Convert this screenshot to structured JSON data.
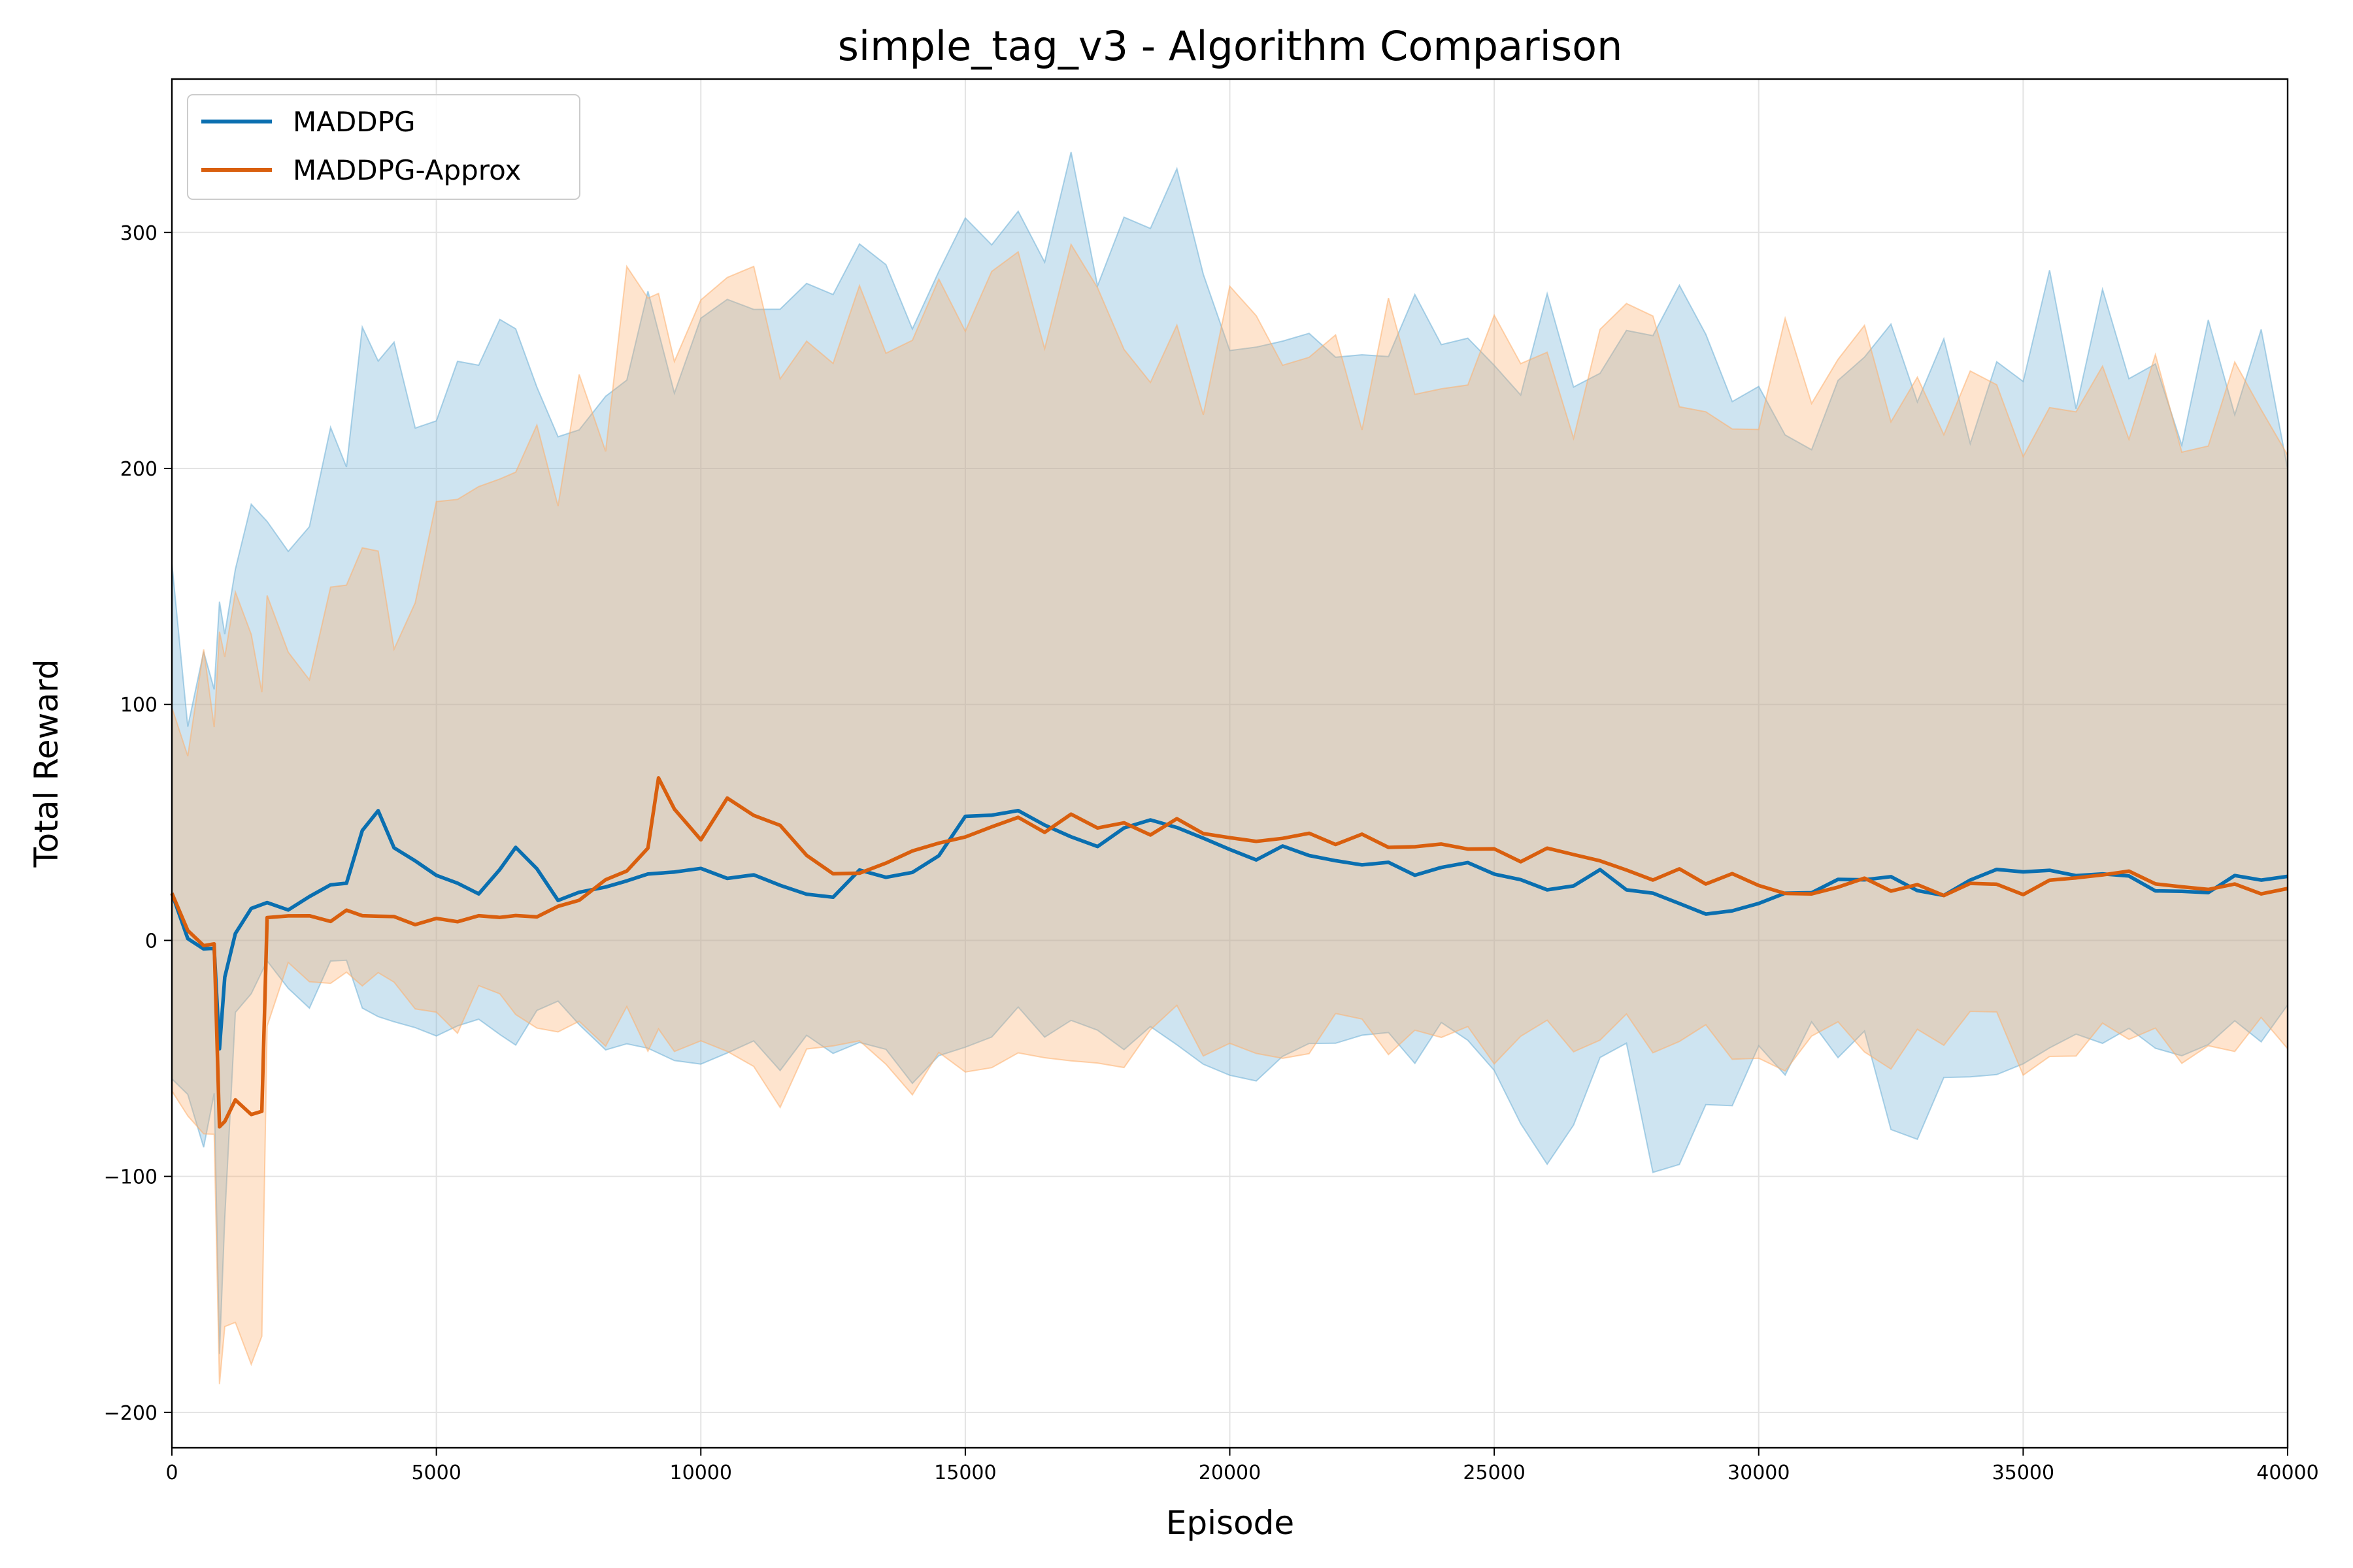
{
  "chart_data": {
    "type": "line",
    "title": "simple_tag_v3 - Algorithm Comparison",
    "xlabel": "Episode",
    "ylabel": "Total Reward",
    "xlim": [
      0,
      40000
    ],
    "ylim": [
      -215,
      365
    ],
    "xticks": [
      0,
      5000,
      10000,
      15000,
      20000,
      25000,
      30000,
      35000,
      40000
    ],
    "yticks": [
      -200,
      -100,
      0,
      100,
      200,
      300
    ],
    "ytick_labels": [
      "−200",
      "−100",
      "0",
      "100",
      "200",
      "300"
    ],
    "grid": true,
    "legend": "top-left",
    "series": [
      {
        "name": "MADDPG",
        "color": "#0a6fb0",
        "band_color": "#6baed6",
        "x": [
          0,
          300,
          600,
          800,
          900,
          1000,
          1200,
          1500,
          1800,
          2200,
          2600,
          3000,
          3300,
          3600,
          3900,
          4200,
          4600,
          5000,
          5400,
          5800,
          6200,
          6500,
          6900,
          7300,
          7700,
          8200,
          8600,
          9000,
          9500,
          10000,
          10500,
          11000,
          11500,
          12000,
          12500,
          13000,
          13500,
          14000,
          14500,
          15000,
          15500,
          16000,
          16500,
          17000,
          17500,
          18000,
          18500,
          19000,
          19500,
          20000,
          20500,
          21000,
          21500,
          22000,
          22500,
          23000,
          23500,
          24000,
          24500,
          25000,
          25500,
          26000,
          26500,
          27000,
          27500,
          28000,
          28500,
          29000,
          29500,
          30000,
          30500,
          31000,
          31500,
          32000,
          32500,
          33000,
          33500,
          34000,
          34500,
          35000,
          35500,
          36000,
          36500,
          37000,
          37500,
          38000,
          38500,
          39000,
          39500,
          40000
        ],
        "mean": [
          20,
          0,
          -3,
          -5,
          -45,
          -15,
          2,
          12,
          15,
          15,
          18,
          22,
          25,
          45,
          57,
          38,
          33,
          30,
          22,
          20,
          28,
          38,
          30,
          18,
          20,
          22,
          25,
          28,
          30,
          32,
          25,
          28,
          25,
          22,
          20,
          28,
          25,
          30,
          38,
          55,
          52,
          55,
          50,
          45,
          42,
          48,
          52,
          50,
          45,
          38,
          35,
          38,
          35,
          32,
          30,
          33,
          30,
          32,
          35,
          30,
          28,
          22,
          25,
          28,
          22,
          20,
          15,
          12,
          15,
          18,
          20,
          22,
          25,
          28,
          25,
          22,
          20,
          25,
          28,
          30,
          28,
          25,
          27,
          25,
          22,
          20,
          22,
          25,
          25,
          26
        ],
        "upper": [
          130,
          100,
          105,
          120,
          110,
          120,
          130,
          150,
          140,
          150,
          160,
          190,
          220,
          230,
          240,
          240,
          230,
          220,
          235,
          250,
          260,
          255,
          200,
          180,
          200,
          220,
          240,
          245,
          240,
          230,
          250,
          240,
          245,
          250,
          255,
          260,
          250,
          265,
          270,
          300,
          290,
          300,
          295,
          300,
          290,
          280,
          290,
          300,
          270,
          250,
          250,
          255,
          240,
          245,
          250,
          230,
          235,
          250,
          240,
          245,
          230,
          240,
          235,
          240,
          225,
          230,
          240,
          245,
          240,
          235,
          220,
          225,
          230,
          235,
          225,
          230,
          240,
          230,
          225,
          240,
          255,
          240,
          245,
          235,
          230,
          225,
          245,
          240,
          230,
          210
        ],
        "lower": [
          -50,
          -70,
          -80,
          -70,
          -165,
          -130,
          -30,
          -20,
          -15,
          -20,
          -20,
          -15,
          -20,
          -25,
          -30,
          -30,
          -35,
          -40,
          -35,
          -40,
          -40,
          -35,
          -35,
          -30,
          -30,
          -35,
          -35,
          -40,
          -40,
          -40,
          -40,
          -45,
          -45,
          -50,
          -45,
          -50,
          -50,
          -55,
          -50,
          -45,
          -45,
          -40,
          -40,
          -45,
          -45,
          -45,
          -45,
          -40,
          -45,
          -45,
          -50,
          -45,
          -45,
          -40,
          -40,
          -40,
          -45,
          -45,
          -45,
          -60,
          -80,
          -95,
          -70,
          -60,
          -55,
          -90,
          -105,
          -80,
          -60,
          -55,
          -50,
          -45,
          -55,
          -50,
          -70,
          -90,
          -60,
          -50,
          -45,
          -45,
          -45,
          -40,
          -45,
          -45,
          -50,
          -45,
          -40,
          -45,
          -40,
          -30
        ]
      },
      {
        "name": "MADDPG-Approx",
        "color": "#d95f0e",
        "band_color": "#fdae6b",
        "x": [
          0,
          300,
          600,
          800,
          900,
          1000,
          1200,
          1500,
          1700,
          1800,
          2200,
          2600,
          3000,
          3300,
          3600,
          3900,
          4200,
          4600,
          5000,
          5400,
          5800,
          6200,
          6500,
          6900,
          7300,
          7700,
          8200,
          8600,
          9000,
          9200,
          9500,
          10000,
          10500,
          11000,
          11500,
          12000,
          12500,
          13000,
          13500,
          14000,
          14500,
          15000,
          15500,
          16000,
          16500,
          17000,
          17500,
          18000,
          18500,
          19000,
          19500,
          20000,
          20500,
          21000,
          21500,
          22000,
          22500,
          23000,
          23500,
          24000,
          24500,
          25000,
          25500,
          26000,
          26500,
          27000,
          27500,
          28000,
          28500,
          29000,
          29500,
          30000,
          30500,
          31000,
          31500,
          32000,
          32500,
          33000,
          33500,
          34000,
          34500,
          35000,
          35500,
          36000,
          36500,
          37000,
          37500,
          38000,
          38500,
          39000,
          39500,
          40000
        ],
        "mean": [
          20,
          2,
          0,
          0,
          -80,
          -75,
          -70,
          -72,
          -70,
          10,
          10,
          10,
          10,
          12,
          10,
          12,
          10,
          8,
          10,
          10,
          8,
          10,
          12,
          10,
          15,
          18,
          25,
          30,
          40,
          70,
          55,
          45,
          60,
          55,
          48,
          35,
          28,
          30,
          32,
          38,
          40,
          45,
          50,
          52,
          48,
          55,
          50,
          48,
          45,
          50,
          45,
          42,
          40,
          45,
          45,
          42,
          45,
          40,
          38,
          42,
          40,
          38,
          35,
          38,
          35,
          35,
          30,
          28,
          30,
          25,
          28,
          25,
          22,
          20,
          25,
          28,
          22,
          22,
          20,
          25,
          22,
          20,
          25,
          28,
          30,
          28,
          25,
          22,
          20,
          22,
          20,
          20
        ],
        "upper": [
          110,
          90,
          100,
          110,
          120,
          110,
          120,
          130,
          125,
          130,
          120,
          110,
          125,
          130,
          140,
          145,
          140,
          150,
          160,
          170,
          165,
          180,
          185,
          180,
          200,
          210,
          220,
          250,
          270,
          280,
          265,
          265,
          255,
          260,
          255,
          250,
          240,
          245,
          250,
          250,
          255,
          260,
          250,
          255,
          250,
          260,
          255,
          260,
          245,
          240,
          235,
          240,
          245,
          240,
          245,
          240,
          230,
          235,
          240,
          235,
          240,
          230,
          235,
          240,
          230,
          240,
          245,
          260,
          240,
          230,
          235,
          225,
          230,
          240,
          230,
          235,
          225,
          240,
          220,
          230,
          225,
          220,
          235,
          230,
          240,
          225,
          230,
          225,
          230,
          220,
          215,
          225
        ],
        "lower": [
          -60,
          -70,
          -80,
          -75,
          -180,
          -175,
          -170,
          -175,
          -170,
          -25,
          -20,
          -20,
          -15,
          -20,
          -20,
          -25,
          -25,
          -30,
          -30,
          -35,
          -30,
          -35,
          -35,
          -30,
          -35,
          -35,
          -40,
          -40,
          -45,
          -50,
          -45,
          -45,
          -50,
          -60,
          -75,
          -55,
          -45,
          -50,
          -50,
          -55,
          -50,
          -45,
          -50,
          -45,
          -40,
          -40,
          -45,
          -45,
          -40,
          -40,
          -45,
          -45,
          -40,
          -45,
          -40,
          -40,
          -40,
          -45,
          -45,
          -40,
          -40,
          -45,
          -40,
          -40,
          -45,
          -40,
          -40,
          -40,
          -45,
          -45,
          -40,
          -40,
          -45,
          -45,
          -40,
          -45,
          -45,
          -40,
          -45,
          -40,
          -40,
          -45,
          -40,
          -45,
          -40,
          -40,
          -45,
          -40,
          -45,
          -40,
          -40,
          -35
        ]
      }
    ]
  }
}
